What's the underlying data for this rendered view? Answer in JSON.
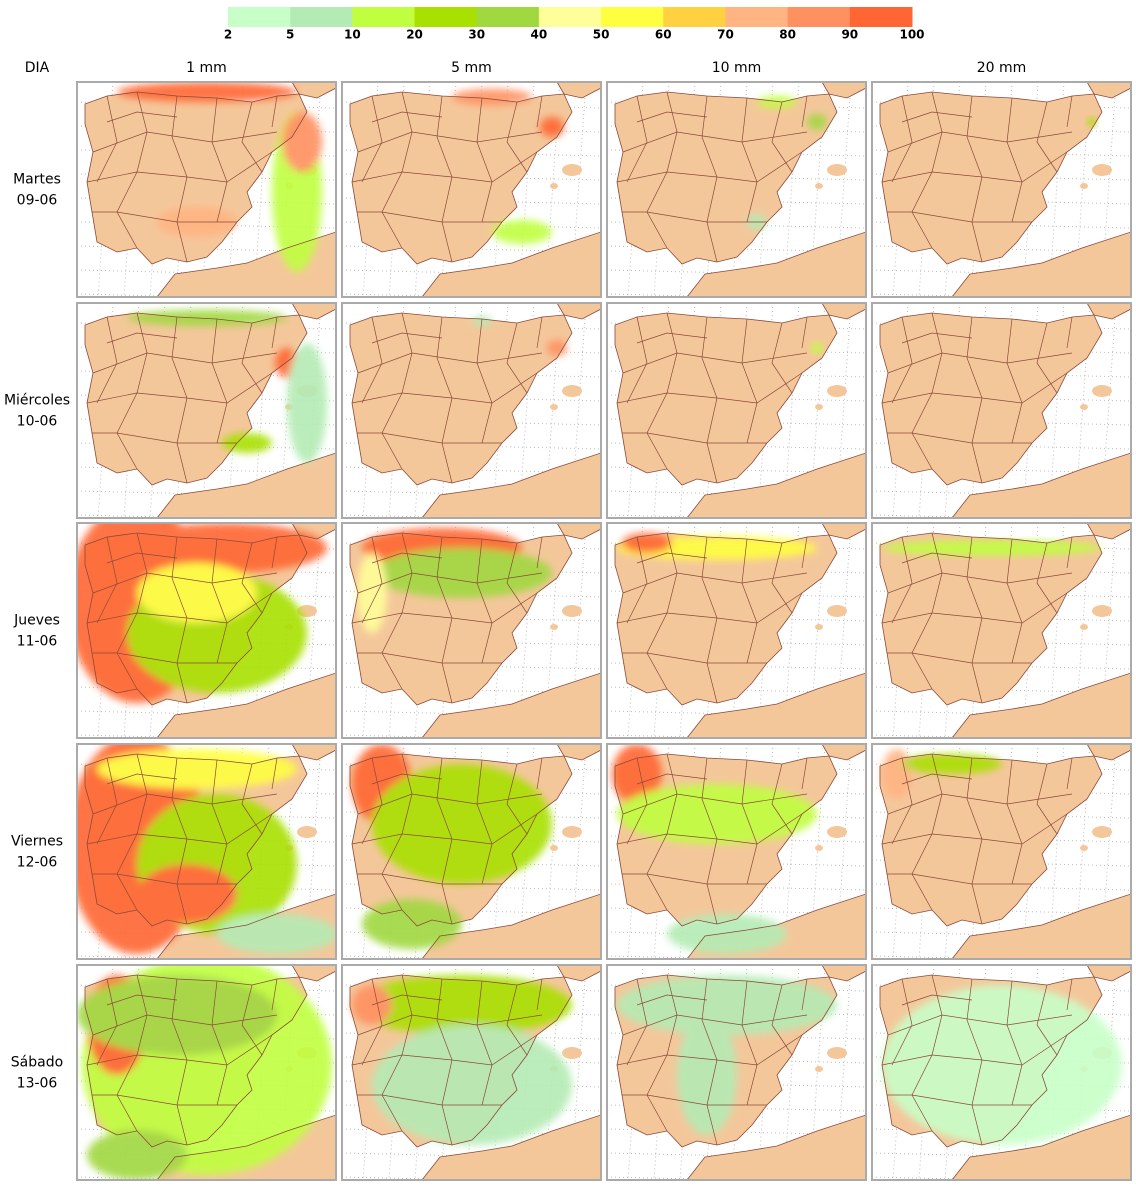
{
  "legend": {
    "colors": [
      "#c8ffc8",
      "#b4ebb4",
      "#c0ff40",
      "#a8e000",
      "#a0d840",
      "#ffff99",
      "#ffff40",
      "#ffd040",
      "#ffb482",
      "#ff9060",
      "#ff6633"
    ],
    "ticks": [
      2,
      5,
      10,
      20,
      30,
      40,
      50,
      60,
      70,
      80,
      90,
      100
    ]
  },
  "header": {
    "row_label": "DIA",
    "columns": [
      "1 mm",
      "5 mm",
      "10 mm",
      "20 mm"
    ]
  },
  "rows": [
    {
      "day": "Martes",
      "date": "09-06"
    },
    {
      "day": "Miércoles",
      "date": "10-06"
    },
    {
      "day": "Jueves",
      "date": "11-06"
    },
    {
      "day": "Viernes",
      "date": "12-06"
    },
    {
      "day": "Sábado",
      "date": "13-06"
    }
  ]
}
